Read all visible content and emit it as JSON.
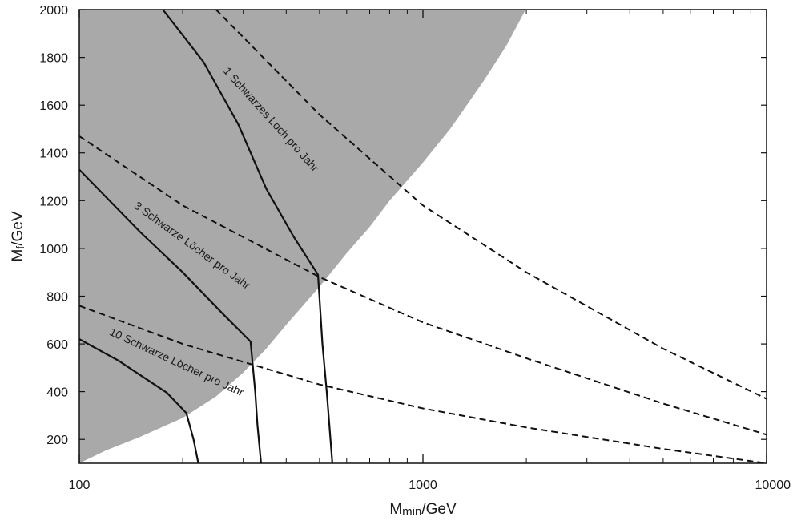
{
  "chart_data": {
    "type": "line",
    "title": "",
    "xlabel": "M_min/GeV",
    "xlabel_main": "M",
    "xlabel_sub": "min",
    "xlabel_rest": "/GeV",
    "ylabel": "Mf/GeV",
    "ylabel_main": "M",
    "ylabel_sub": "f",
    "ylabel_rest": "/GeV",
    "xscale": "log",
    "xlim": [
      100,
      10000
    ],
    "ylim": [
      100,
      2000
    ],
    "x_major_ticks": [
      100,
      1000,
      10000
    ],
    "x_tick_labels": [
      "100",
      "1000",
      "10000"
    ],
    "y_ticks": [
      200,
      400,
      600,
      800,
      1000,
      1200,
      1400,
      1600,
      1800,
      2000
    ],
    "y_tick_labels": [
      "200",
      "400",
      "600",
      "800",
      "1000",
      "1200",
      "1400",
      "1600",
      "1800",
      "2000"
    ],
    "grid": false,
    "excluded_region": {
      "color": "#a9a9a9",
      "boundary": [
        {
          "x": 100,
          "y": 100
        },
        {
          "x": 120,
          "y": 155
        },
        {
          "x": 150,
          "y": 210
        },
        {
          "x": 200,
          "y": 290
        },
        {
          "x": 250,
          "y": 380
        },
        {
          "x": 300,
          "y": 480
        },
        {
          "x": 350,
          "y": 580
        },
        {
          "x": 400,
          "y": 680
        },
        {
          "x": 500,
          "y": 840
        },
        {
          "x": 600,
          "y": 980
        },
        {
          "x": 700,
          "y": 1090
        },
        {
          "x": 800,
          "y": 1200
        },
        {
          "x": 1000,
          "y": 1360
        },
        {
          "x": 1200,
          "y": 1500
        },
        {
          "x": 1500,
          "y": 1700
        },
        {
          "x": 1750,
          "y": 1850
        },
        {
          "x": 1990,
          "y": 2000
        }
      ]
    },
    "series": [
      {
        "style": "solid",
        "points": [
          {
            "x": 100,
            "y": 620
          },
          {
            "x": 130,
            "y": 530
          },
          {
            "x": 180,
            "y": 395
          },
          {
            "x": 205,
            "y": 310
          },
          {
            "x": 215,
            "y": 200
          },
          {
            "x": 222,
            "y": 100
          }
        ]
      },
      {
        "style": "solid",
        "points": [
          {
            "x": 100,
            "y": 1330
          },
          {
            "x": 150,
            "y": 1070
          },
          {
            "x": 200,
            "y": 900
          },
          {
            "x": 260,
            "y": 730
          },
          {
            "x": 315,
            "y": 610
          },
          {
            "x": 325,
            "y": 400
          },
          {
            "x": 330,
            "y": 260
          },
          {
            "x": 338,
            "y": 100
          }
        ]
      },
      {
        "style": "solid",
        "points": [
          {
            "x": 175,
            "y": 2000
          },
          {
            "x": 230,
            "y": 1780
          },
          {
            "x": 290,
            "y": 1520
          },
          {
            "x": 350,
            "y": 1250
          },
          {
            "x": 420,
            "y": 1050
          },
          {
            "x": 495,
            "y": 890
          },
          {
            "x": 510,
            "y": 600
          },
          {
            "x": 525,
            "y": 400
          },
          {
            "x": 545,
            "y": 100
          }
        ]
      },
      {
        "style": "dashed",
        "points": [
          {
            "x": 100,
            "y": 760
          },
          {
            "x": 200,
            "y": 600
          },
          {
            "x": 500,
            "y": 430
          },
          {
            "x": 1000,
            "y": 330
          },
          {
            "x": 2000,
            "y": 250
          },
          {
            "x": 5000,
            "y": 160
          },
          {
            "x": 10000,
            "y": 100
          }
        ]
      },
      {
        "style": "dashed",
        "points": [
          {
            "x": 100,
            "y": 1470
          },
          {
            "x": 200,
            "y": 1180
          },
          {
            "x": 500,
            "y": 880
          },
          {
            "x": 1000,
            "y": 690
          },
          {
            "x": 2000,
            "y": 540
          },
          {
            "x": 5000,
            "y": 350
          },
          {
            "x": 10000,
            "y": 220
          }
        ]
      },
      {
        "style": "dashed",
        "points": [
          {
            "x": 250,
            "y": 2000
          },
          {
            "x": 500,
            "y": 1560
          },
          {
            "x": 1000,
            "y": 1180
          },
          {
            "x": 2000,
            "y": 900
          },
          {
            "x": 5000,
            "y": 580
          },
          {
            "x": 10000,
            "y": 370
          }
        ]
      }
    ],
    "annotations": [
      {
        "text": "1 Schwarzes Loch pro Jahr",
        "x": 355,
        "y": 1530,
        "angle": 48
      },
      {
        "text": "3 Schwarze Löcher pro Jahr",
        "x": 210,
        "y": 1000,
        "angle": 36
      },
      {
        "text": "10 Schwarze Löcher pro Jahr",
        "x": 190,
        "y": 510,
        "angle": 25
      }
    ]
  }
}
